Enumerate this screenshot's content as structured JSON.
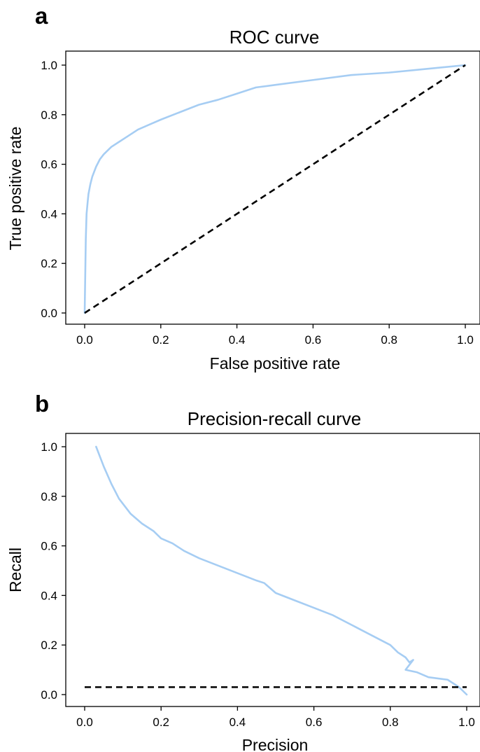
{
  "chart_data": [
    {
      "panel": "a",
      "type": "line",
      "title": "ROC curve",
      "xlabel": "False positive rate",
      "ylabel": "True positive rate",
      "xlim": [
        0,
        1
      ],
      "ylim": [
        0,
        1
      ],
      "xticks": [
        "0.0",
        "0.2",
        "0.4",
        "0.6",
        "0.8",
        "1.0"
      ],
      "yticks": [
        "0.0",
        "0.2",
        "0.4",
        "0.6",
        "0.8",
        "1.0"
      ],
      "grid": false,
      "series": [
        {
          "color": "#a6cdf3",
          "style": "solid",
          "x": [
            0.0,
            0.001,
            0.002,
            0.003,
            0.005,
            0.008,
            0.01,
            0.015,
            0.02,
            0.03,
            0.04,
            0.05,
            0.07,
            0.09,
            0.11,
            0.14,
            0.17,
            0.2,
            0.25,
            0.3,
            0.35,
            0.4,
            0.45,
            0.5,
            0.6,
            0.7,
            0.8,
            0.9,
            1.0
          ],
          "y": [
            0.0,
            0.1,
            0.2,
            0.3,
            0.4,
            0.45,
            0.48,
            0.52,
            0.55,
            0.59,
            0.62,
            0.64,
            0.67,
            0.69,
            0.71,
            0.74,
            0.76,
            0.78,
            0.81,
            0.84,
            0.86,
            0.885,
            0.91,
            0.92,
            0.94,
            0.96,
            0.97,
            0.985,
            1.0
          ]
        },
        {
          "color": "#000000",
          "style": "dashed",
          "x": [
            0,
            1
          ],
          "y": [
            0,
            1
          ]
        }
      ]
    },
    {
      "panel": "b",
      "type": "line",
      "title": "Precision-recall curve",
      "xlabel": "Precision",
      "ylabel": "Recall",
      "xlim": [
        0,
        1
      ],
      "ylim": [
        0,
        1
      ],
      "xticks": [
        "0.0",
        "0.2",
        "0.4",
        "0.6",
        "0.8",
        "1.0"
      ],
      "yticks": [
        "0.0",
        "0.2",
        "0.4",
        "0.6",
        "0.8",
        "1.0"
      ],
      "grid": false,
      "series": [
        {
          "color": "#a6cdf3",
          "style": "solid",
          "x": [
            0.03,
            0.04,
            0.05,
            0.07,
            0.09,
            0.12,
            0.15,
            0.18,
            0.2,
            0.23,
            0.26,
            0.3,
            0.35,
            0.4,
            0.45,
            0.47,
            0.5,
            0.55,
            0.6,
            0.65,
            0.7,
            0.75,
            0.8,
            0.82,
            0.84,
            0.85,
            0.86,
            0.84,
            0.87,
            0.9,
            0.95,
            0.98,
            1.0
          ],
          "y": [
            1.0,
            0.96,
            0.92,
            0.85,
            0.79,
            0.73,
            0.69,
            0.66,
            0.63,
            0.61,
            0.58,
            0.55,
            0.52,
            0.49,
            0.46,
            0.45,
            0.41,
            0.38,
            0.35,
            0.32,
            0.28,
            0.24,
            0.2,
            0.17,
            0.15,
            0.13,
            0.14,
            0.1,
            0.09,
            0.07,
            0.06,
            0.03,
            0.0
          ]
        },
        {
          "color": "#000000",
          "style": "dashed",
          "x": [
            0,
            1
          ],
          "y": [
            0.03,
            0.03
          ]
        }
      ]
    }
  ]
}
